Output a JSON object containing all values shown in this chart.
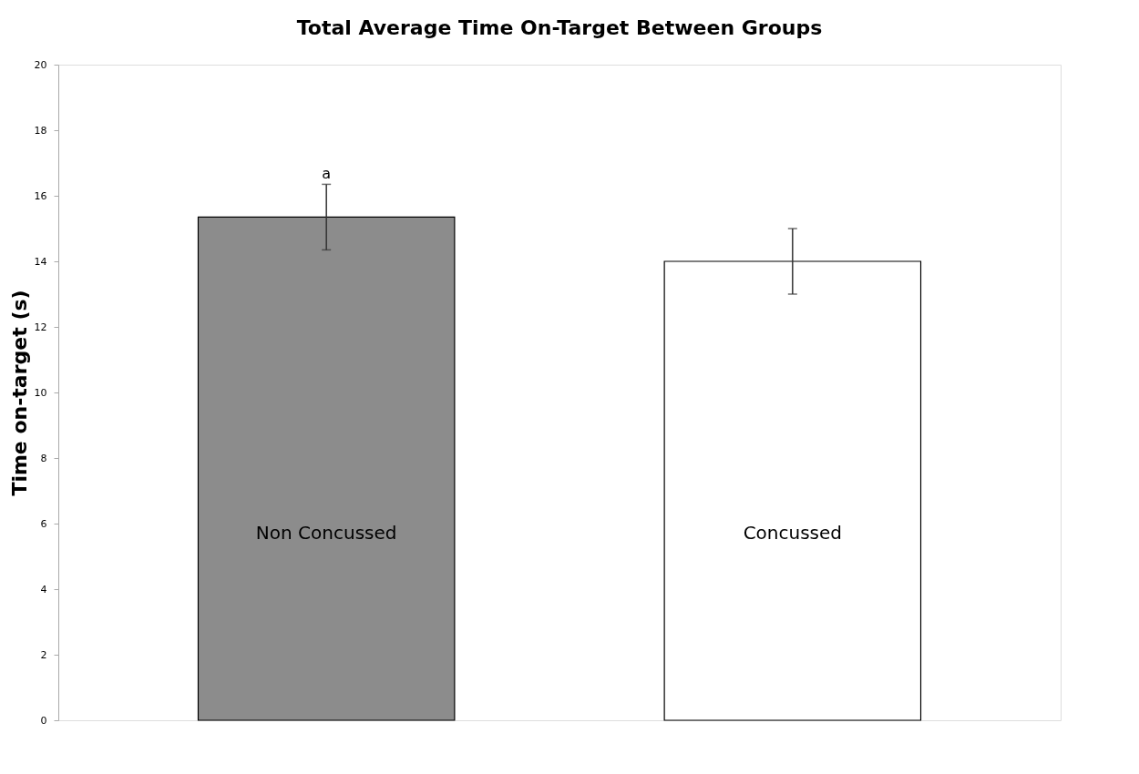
{
  "chart_data": {
    "type": "bar",
    "title": "Total Average Time On-Target Between Groups",
    "ylabel": "Time on-target (s)",
    "categories": [
      "Non Concussed",
      "Concussed"
    ],
    "values": [
      15.35,
      14.0
    ],
    "errors": [
      1.0,
      1.0
    ],
    "colors": [
      "#8c8c8c",
      "#ffffff"
    ],
    "ylim": [
      0,
      20
    ],
    "yticks": [
      0,
      2,
      4,
      6,
      8,
      10,
      12,
      14,
      16,
      18,
      20
    ],
    "annotations": [
      "a"
    ],
    "grid": false
  }
}
